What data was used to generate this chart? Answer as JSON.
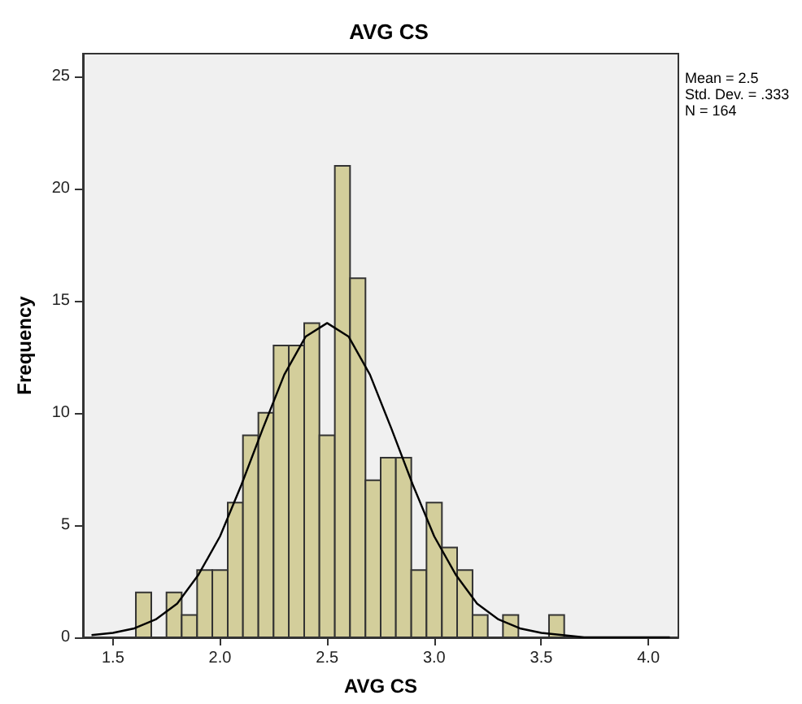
{
  "chart_data": {
    "type": "histogram",
    "title": "AVG CS",
    "xlabel": "AVG CS",
    "ylabel": "Frequency",
    "annotations": [
      "Mean = 2.5\nStd. Dev. = .333\nN = 164"
    ],
    "bins": [
      1.607,
      1.679,
      1.75,
      1.821,
      1.893,
      1.964,
      2.036,
      2.107,
      2.179,
      2.25,
      2.321,
      2.393,
      2.464,
      2.536,
      2.607,
      2.679,
      2.75,
      2.821,
      2.893,
      2.964,
      3.036,
      3.107,
      3.179,
      3.25,
      3.321,
      3.393,
      3.464,
      3.536,
      3.607
    ],
    "values": [
      2,
      0,
      2,
      1,
      3,
      3,
      6,
      9,
      10,
      13,
      13,
      14,
      9,
      21,
      16,
      7,
      8,
      8,
      3,
      6,
      4,
      3,
      1,
      0,
      1,
      0,
      0,
      1
    ],
    "color": "#d3ce9b",
    "series": [
      {
        "type": "line",
        "color": "#000000",
        "x": [
          1.4,
          1.5,
          1.6,
          1.7,
          1.8,
          1.9,
          2.0,
          2.1,
          2.2,
          2.3,
          2.4,
          2.5,
          2.6,
          2.7,
          2.8,
          2.9,
          3.0,
          3.1,
          3.2,
          3.3,
          3.4,
          3.5,
          3.6,
          3.7,
          3.8,
          4.0,
          4.1
        ],
        "values": [
          0.1,
          0.2,
          0.4,
          0.8,
          1.5,
          2.8,
          4.5,
          6.8,
          9.3,
          11.7,
          13.4,
          14.0,
          13.4,
          11.7,
          9.3,
          6.8,
          4.5,
          2.8,
          1.5,
          0.8,
          0.4,
          0.2,
          0.1,
          0.0,
          0.0,
          0.0,
          0.0
        ]
      }
    ],
    "xlim": [
      1.36,
      4.14
    ],
    "xticks": [
      1.5,
      {
        "value": 2,
        "label": "2.0"
      },
      2.5,
      {
        "value": 3,
        "label": "3.0"
      },
      3.5,
      {
        "value": 4,
        "label": "4.0"
      }
    ],
    "ylim": [
      0,
      26
    ],
    "yticks": [
      0,
      5,
      10,
      15,
      20,
      25
    ],
    "grid": false,
    "marker": "none",
    "line_style": "solid"
  }
}
